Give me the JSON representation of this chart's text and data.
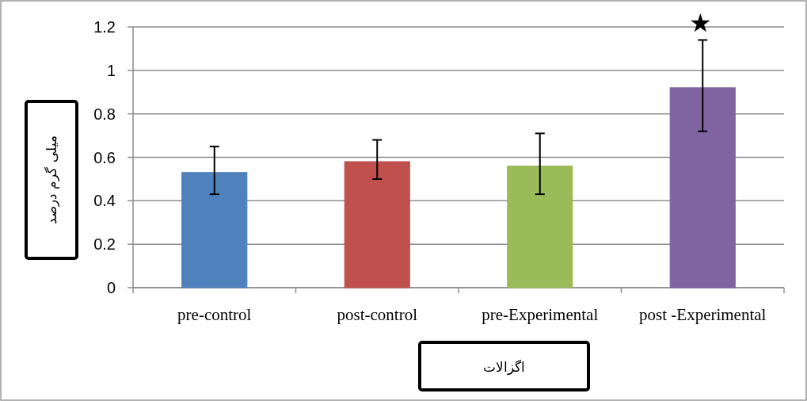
{
  "chart_data": {
    "type": "bar",
    "xlabel": "اگزالات",
    "ylabel": "میلی گرم درصد",
    "categories": [
      "pre-control",
      "post-control",
      "pre-Experimental",
      "post -Experimental"
    ],
    "values": [
      0.53,
      0.58,
      0.56,
      0.92
    ],
    "colors": [
      "#4f81bd",
      "#c0504d",
      "#9bbb59",
      "#8064a2"
    ],
    "errors": [
      [
        0.43,
        0.65
      ],
      [
        0.5,
        0.68
      ],
      [
        0.43,
        0.71
      ],
      [
        0.72,
        1.14
      ]
    ],
    "ylim": [
      0,
      1.2
    ],
    "yticks": [
      0,
      0.2,
      0.4,
      0.6,
      0.8,
      1,
      1.2
    ],
    "grid": "y",
    "annotations": [
      "★"
    ]
  }
}
